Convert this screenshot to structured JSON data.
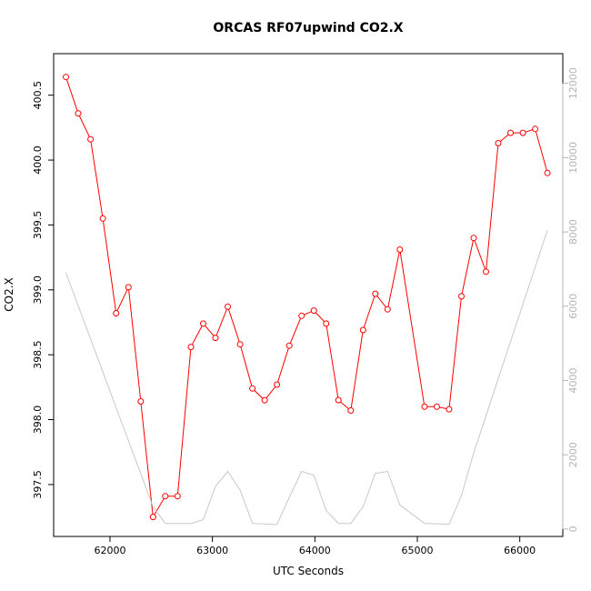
{
  "chart_data": {
    "type": "line",
    "title": "ORCAS RF07upwind CO2.X",
    "xlabel": "UTC Seconds",
    "ylabel": "CO2.X",
    "xlim": [
      61450,
      66420
    ],
    "ylim": [
      397.1,
      400.82
    ],
    "y2lim": [
      -200,
      12800
    ],
    "x_ticks": [
      62000,
      63000,
      64000,
      65000,
      66000
    ],
    "y_ticks": [
      397.5,
      398.0,
      398.5,
      399.0,
      399.5,
      400.0,
      400.5
    ],
    "y_tick_labels": [
      "397.5",
      "398.0",
      "398.5",
      "399.0",
      "399.5",
      "400.0",
      "400.5"
    ],
    "y2_ticks": [
      0,
      2000,
      4000,
      6000,
      8000,
      10000,
      12000
    ],
    "grid": false,
    "series": [
      {
        "color": "#ff0000",
        "axis": "left",
        "markers": "open-circle",
        "x": [
          61570,
          61690,
          61810,
          61930,
          62060,
          62180,
          62300,
          62420,
          62540,
          62660,
          62790,
          62910,
          63030,
          63150,
          63270,
          63390,
          63510,
          63630,
          63750,
          63870,
          63990,
          64110,
          64230,
          64350,
          64470,
          64590,
          64710,
          64830,
          65070,
          65190,
          65310,
          65430,
          65550,
          65670,
          65790,
          65910,
          66030,
          66150,
          66270
        ],
        "y": [
          400.64,
          400.36,
          400.16,
          399.55,
          398.82,
          399.02,
          398.14,
          397.25,
          397.41,
          397.41,
          398.56,
          398.74,
          398.63,
          398.87,
          398.58,
          398.24,
          398.15,
          398.27,
          398.57,
          398.8,
          398.84,
          398.74,
          398.15,
          398.07,
          398.69,
          398.97,
          398.85,
          399.31,
          398.1,
          398.1,
          398.08,
          398.95,
          399.4,
          399.14,
          400.13,
          400.21,
          400.21,
          400.24,
          399.9
        ]
      },
      {
        "color": "#c8c8c8",
        "axis": "right",
        "markers": "none",
        "x": [
          61570,
          62420,
          62540,
          62790,
          62910,
          63030,
          63150,
          63270,
          63390,
          63630,
          63750,
          63870,
          63990,
          64110,
          64230,
          64350,
          64470,
          64590,
          64710,
          64830,
          65070,
          65310,
          65430,
          65550,
          65670,
          65790,
          65910,
          66030,
          66150,
          66270
        ],
        "y": [
          6900,
          600,
          150,
          150,
          250,
          1150,
          1550,
          1050,
          150,
          120,
          850,
          1550,
          1450,
          500,
          150,
          150,
          600,
          1500,
          1550,
          650,
          150,
          130,
          900,
          2050,
          3050,
          4050,
          5050,
          6050,
          7050,
          8050
        ]
      }
    ]
  }
}
